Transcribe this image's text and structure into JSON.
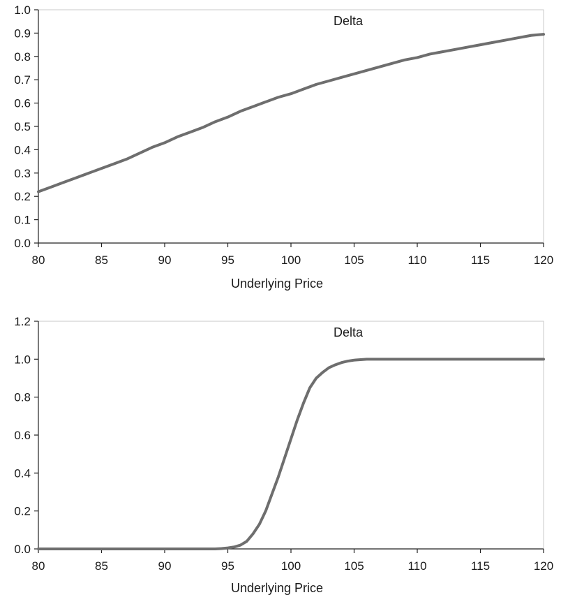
{
  "chart_data": [
    {
      "type": "line",
      "title": "",
      "xlabel": "Underlying Price",
      "ylabel": "",
      "xlim": [
        80,
        120
      ],
      "ylim": [
        0,
        1.0
      ],
      "xticks": [
        80,
        85,
        90,
        95,
        100,
        105,
        110,
        115,
        120
      ],
      "yticks": [
        "0.0",
        "0.1",
        "0.2",
        "0.3",
        "0.4",
        "0.5",
        "0.6",
        "0.7",
        "0.8",
        "0.9",
        "1.0"
      ],
      "grid": false,
      "legend": "top-center",
      "colors": {
        "line": "#6e6e6e"
      },
      "series": [
        {
          "name": "Delta",
          "x": [
            80,
            81,
            82,
            83,
            84,
            85,
            86,
            87,
            88,
            89,
            90,
            91,
            92,
            93,
            94,
            95,
            96,
            97,
            98,
            99,
            100,
            101,
            102,
            103,
            104,
            105,
            106,
            107,
            108,
            109,
            110,
            111,
            112,
            113,
            114,
            115,
            116,
            117,
            118,
            119,
            120
          ],
          "values": [
            0.22,
            0.24,
            0.26,
            0.28,
            0.3,
            0.32,
            0.34,
            0.36,
            0.385,
            0.41,
            0.43,
            0.455,
            0.475,
            0.495,
            0.52,
            0.54,
            0.565,
            0.585,
            0.605,
            0.625,
            0.64,
            0.66,
            0.68,
            0.695,
            0.71,
            0.725,
            0.74,
            0.755,
            0.77,
            0.785,
            0.795,
            0.81,
            0.82,
            0.83,
            0.84,
            0.85,
            0.86,
            0.87,
            0.88,
            0.89,
            0.895
          ]
        }
      ]
    },
    {
      "type": "line",
      "title": "",
      "xlabel": "Underlying Price",
      "ylabel": "",
      "xlim": [
        80,
        120
      ],
      "ylim": [
        0,
        1.2
      ],
      "xticks": [
        80,
        85,
        90,
        95,
        100,
        105,
        110,
        115,
        120
      ],
      "yticks": [
        "0.0",
        "0.2",
        "0.4",
        "0.6",
        "0.8",
        "1.0",
        "1.2"
      ],
      "grid": false,
      "legend": "top-center",
      "colors": {
        "line": "#6e6e6e"
      },
      "series": [
        {
          "name": "Delta",
          "x": [
            80,
            85,
            90,
            94,
            94.5,
            95,
            95.5,
            96,
            96.5,
            97,
            97.5,
            98,
            98.5,
            99,
            99.5,
            100,
            100.5,
            101,
            101.5,
            102,
            102.5,
            103,
            103.5,
            104,
            104.5,
            105,
            106,
            110,
            115,
            120
          ],
          "values": [
            0.0,
            0.0,
            0.0,
            0.0,
            0.002,
            0.005,
            0.01,
            0.02,
            0.04,
            0.08,
            0.13,
            0.2,
            0.29,
            0.38,
            0.48,
            0.58,
            0.68,
            0.77,
            0.85,
            0.9,
            0.93,
            0.955,
            0.97,
            0.982,
            0.99,
            0.995,
            1.0,
            1.0,
            1.0,
            1.0
          ]
        }
      ]
    }
  ]
}
